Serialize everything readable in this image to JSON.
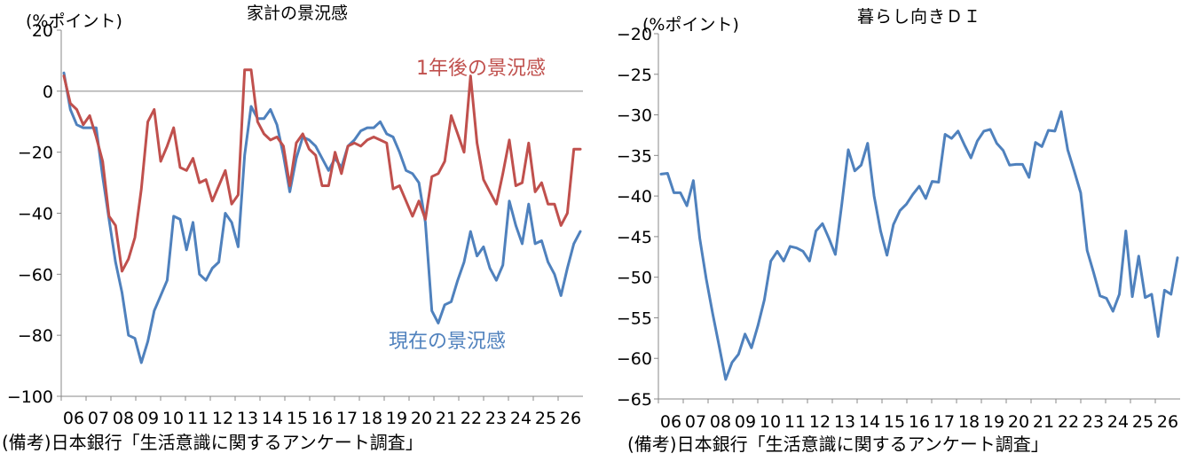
{
  "chart_data": [
    {
      "type": "line",
      "title": "家計の景況感",
      "ylabel": "(%ポイント)",
      "ylim": [
        -100,
        20
      ],
      "yticks": [
        20,
        0,
        -20,
        -40,
        -60,
        -80,
        -100
      ],
      "xlim": [
        2006,
        2026
      ],
      "x_tick_labels": [
        "06",
        "07",
        "08",
        "09",
        "10",
        "11",
        "12",
        "13",
        "14",
        "15",
        "16",
        "17",
        "18",
        "19",
        "20",
        "21",
        "22",
        "23",
        "24",
        "25",
        "26"
      ],
      "reference_line": 0,
      "grid": false,
      "source": "(備考)日本銀行「生活意識に関するアンケート調査」",
      "series": [
        {
          "name": "現在の景況感",
          "color": "#4f81bd",
          "points": [
            [
              2006.0,
              6
            ],
            [
              2006.25,
              -6
            ],
            [
              2006.5,
              -11
            ],
            [
              2006.75,
              -12
            ],
            [
              2007.0,
              -12
            ],
            [
              2007.25,
              -12
            ],
            [
              2007.5,
              -28
            ],
            [
              2007.75,
              -42
            ],
            [
              2008.0,
              -56
            ],
            [
              2008.25,
              -66
            ],
            [
              2008.5,
              -80
            ],
            [
              2008.75,
              -81
            ],
            [
              2009.0,
              -89
            ],
            [
              2009.25,
              -82
            ],
            [
              2009.5,
              -72
            ],
            [
              2009.75,
              -67
            ],
            [
              2010.0,
              -62
            ],
            [
              2010.25,
              -41
            ],
            [
              2010.5,
              -42
            ],
            [
              2010.75,
              -52
            ],
            [
              2011.0,
              -43
            ],
            [
              2011.25,
              -60
            ],
            [
              2011.5,
              -62
            ],
            [
              2011.75,
              -58
            ],
            [
              2012.0,
              -56
            ],
            [
              2012.25,
              -40
            ],
            [
              2012.5,
              -43
            ],
            [
              2012.75,
              -51
            ],
            [
              2013.0,
              -21
            ],
            [
              2013.25,
              -5
            ],
            [
              2013.5,
              -9
            ],
            [
              2013.75,
              -9
            ],
            [
              2014.0,
              -6
            ],
            [
              2014.25,
              -11
            ],
            [
              2014.5,
              -21
            ],
            [
              2014.75,
              -33
            ],
            [
              2015.0,
              -22
            ],
            [
              2015.25,
              -15
            ],
            [
              2015.5,
              -16
            ],
            [
              2015.75,
              -18
            ],
            [
              2016.0,
              -22
            ],
            [
              2016.25,
              -26
            ],
            [
              2016.5,
              -22
            ],
            [
              2016.75,
              -25
            ],
            [
              2017.0,
              -18
            ],
            [
              2017.25,
              -16
            ],
            [
              2017.5,
              -13
            ],
            [
              2017.75,
              -12
            ],
            [
              2018.0,
              -12
            ],
            [
              2018.25,
              -10
            ],
            [
              2018.5,
              -14
            ],
            [
              2018.75,
              -15
            ],
            [
              2019.0,
              -20
            ],
            [
              2019.25,
              -26
            ],
            [
              2019.5,
              -27
            ],
            [
              2019.75,
              -30
            ],
            [
              2020.0,
              -43
            ],
            [
              2020.25,
              -72
            ],
            [
              2020.5,
              -76
            ],
            [
              2020.75,
              -70
            ],
            [
              2021.0,
              -69
            ],
            [
              2021.25,
              -62
            ],
            [
              2021.5,
              -56
            ],
            [
              2021.75,
              -46
            ],
            [
              2022.0,
              -54
            ],
            [
              2022.25,
              -51
            ],
            [
              2022.5,
              -58
            ],
            [
              2022.75,
              -62
            ],
            [
              2023.0,
              -57
            ],
            [
              2023.25,
              -36
            ],
            [
              2023.5,
              -44
            ],
            [
              2023.75,
              -50
            ],
            [
              2024.0,
              -37
            ],
            [
              2024.25,
              -50
            ],
            [
              2024.5,
              -49
            ],
            [
              2024.75,
              -56
            ],
            [
              2025.0,
              -60
            ],
            [
              2025.25,
              -67
            ],
            [
              2025.5,
              -58
            ],
            [
              2025.75,
              -50
            ],
            [
              2026.0,
              -46
            ]
          ]
        },
        {
          "name": "1年後の景況感",
          "color": "#c0504d",
          "points": [
            [
              2006.0,
              5
            ],
            [
              2006.25,
              -4
            ],
            [
              2006.5,
              -6
            ],
            [
              2006.75,
              -11
            ],
            [
              2007.0,
              -8
            ],
            [
              2007.25,
              -15
            ],
            [
              2007.5,
              -23
            ],
            [
              2007.75,
              -41
            ],
            [
              2008.0,
              -44
            ],
            [
              2008.25,
              -59
            ],
            [
              2008.5,
              -55
            ],
            [
              2008.75,
              -48
            ],
            [
              2009.0,
              -32
            ],
            [
              2009.25,
              -10
            ],
            [
              2009.5,
              -6
            ],
            [
              2009.75,
              -23
            ],
            [
              2010.0,
              -18
            ],
            [
              2010.25,
              -12
            ],
            [
              2010.5,
              -25
            ],
            [
              2010.75,
              -26
            ],
            [
              2011.0,
              -22
            ],
            [
              2011.25,
              -30
            ],
            [
              2011.5,
              -29
            ],
            [
              2011.75,
              -36
            ],
            [
              2012.0,
              -31
            ],
            [
              2012.25,
              -26
            ],
            [
              2012.5,
              -37
            ],
            [
              2012.75,
              -34
            ],
            [
              2013.0,
              7
            ],
            [
              2013.25,
              7
            ],
            [
              2013.5,
              -10
            ],
            [
              2013.75,
              -14
            ],
            [
              2014.0,
              -16
            ],
            [
              2014.25,
              -15
            ],
            [
              2014.5,
              -18
            ],
            [
              2014.75,
              -31
            ],
            [
              2015.0,
              -17
            ],
            [
              2015.25,
              -14
            ],
            [
              2015.5,
              -19
            ],
            [
              2015.75,
              -21
            ],
            [
              2016.0,
              -31
            ],
            [
              2016.25,
              -31
            ],
            [
              2016.5,
              -20
            ],
            [
              2016.75,
              -27
            ],
            [
              2017.0,
              -18
            ],
            [
              2017.25,
              -17
            ],
            [
              2017.5,
              -18
            ],
            [
              2017.75,
              -16
            ],
            [
              2018.0,
              -15
            ],
            [
              2018.25,
              -16
            ],
            [
              2018.5,
              -17
            ],
            [
              2018.75,
              -32
            ],
            [
              2019.0,
              -31
            ],
            [
              2019.25,
              -36
            ],
            [
              2019.5,
              -41
            ],
            [
              2019.75,
              -36
            ],
            [
              2020.0,
              -42
            ],
            [
              2020.25,
              -28
            ],
            [
              2020.5,
              -27
            ],
            [
              2020.75,
              -23
            ],
            [
              2021.0,
              -8
            ],
            [
              2021.25,
              -14
            ],
            [
              2021.5,
              -20
            ],
            [
              2021.75,
              5
            ],
            [
              2022.0,
              -17
            ],
            [
              2022.25,
              -29
            ],
            [
              2022.5,
              -33
            ],
            [
              2022.75,
              -37
            ],
            [
              2023.0,
              -27
            ],
            [
              2023.25,
              -16
            ],
            [
              2023.5,
              -31
            ],
            [
              2023.75,
              -30
            ],
            [
              2024.0,
              -17
            ],
            [
              2024.25,
              -33
            ],
            [
              2024.5,
              -30
            ],
            [
              2024.75,
              -37
            ],
            [
              2025.0,
              -37
            ],
            [
              2025.25,
              -44
            ],
            [
              2025.5,
              -40
            ],
            [
              2025.75,
              -19
            ],
            [
              2026.0,
              -19
            ]
          ]
        }
      ],
      "annotations": [
        {
          "text": "1年後の景況感",
          "color": "#c0504d"
        },
        {
          "text": "現在の景況感",
          "color": "#4f81bd"
        }
      ]
    },
    {
      "type": "line",
      "title": "暮らし向きＤＩ",
      "ylabel": "(%ポイント)",
      "ylim": [
        -65,
        -20
      ],
      "yticks": [
        -20,
        -25,
        -30,
        -35,
        -40,
        -45,
        -50,
        -55,
        -60,
        -65
      ],
      "xlim": [
        2006,
        2026
      ],
      "x_tick_labels": [
        "06",
        "07",
        "08",
        "09",
        "10",
        "11",
        "12",
        "13",
        "14",
        "15",
        "16",
        "17",
        "18",
        "19",
        "20",
        "21",
        "22",
        "23",
        "24",
        "25",
        "26"
      ],
      "grid": false,
      "source": "(備考)日本銀行「生活意識に関するアンケート調査」",
      "series": [
        {
          "color": "#4f81bd",
          "points": [
            [
              2006.0,
              -37.3
            ],
            [
              2006.25,
              -37.2
            ],
            [
              2006.5,
              -39.6
            ],
            [
              2006.75,
              -39.6
            ],
            [
              2007.0,
              -41.2
            ],
            [
              2007.25,
              -38.1
            ],
            [
              2007.5,
              -45.2
            ],
            [
              2007.75,
              -50.2
            ],
            [
              2008.0,
              -54.5
            ],
            [
              2008.25,
              -58.5
            ],
            [
              2008.5,
              -62.6
            ],
            [
              2008.75,
              -60.5
            ],
            [
              2009.0,
              -59.5
            ],
            [
              2009.25,
              -57.0
            ],
            [
              2009.5,
              -58.7
            ],
            [
              2009.75,
              -56.0
            ],
            [
              2010.0,
              -52.8
            ],
            [
              2010.25,
              -48.0
            ],
            [
              2010.5,
              -46.8
            ],
            [
              2010.75,
              -48.0
            ],
            [
              2011.0,
              -46.2
            ],
            [
              2011.25,
              -46.4
            ],
            [
              2011.5,
              -46.8
            ],
            [
              2011.75,
              -48.0
            ],
            [
              2012.0,
              -44.3
            ],
            [
              2012.25,
              -43.4
            ],
            [
              2012.5,
              -45.2
            ],
            [
              2012.75,
              -47.2
            ],
            [
              2013.0,
              -41.0
            ],
            [
              2013.25,
              -34.3
            ],
            [
              2013.5,
              -36.9
            ],
            [
              2013.75,
              -36.2
            ],
            [
              2014.0,
              -33.5
            ],
            [
              2014.25,
              -40.0
            ],
            [
              2014.5,
              -44.3
            ],
            [
              2014.75,
              -47.3
            ],
            [
              2015.0,
              -43.5
            ],
            [
              2015.25,
              -41.8
            ],
            [
              2015.5,
              -41.0
            ],
            [
              2015.75,
              -39.8
            ],
            [
              2016.0,
              -38.8
            ],
            [
              2016.25,
              -40.3
            ],
            [
              2016.5,
              -38.2
            ],
            [
              2016.75,
              -38.3
            ],
            [
              2017.0,
              -32.4
            ],
            [
              2017.25,
              -32.9
            ],
            [
              2017.5,
              -32.0
            ],
            [
              2017.75,
              -33.7
            ],
            [
              2018.0,
              -35.3
            ],
            [
              2018.25,
              -33.2
            ],
            [
              2018.5,
              -32.0
            ],
            [
              2018.75,
              -31.8
            ],
            [
              2019.0,
              -33.5
            ],
            [
              2019.25,
              -34.4
            ],
            [
              2019.5,
              -36.2
            ],
            [
              2019.75,
              -36.1
            ],
            [
              2020.0,
              -36.1
            ],
            [
              2020.25,
              -37.7
            ],
            [
              2020.5,
              -33.4
            ],
            [
              2020.75,
              -33.9
            ],
            [
              2021.0,
              -31.9
            ],
            [
              2021.25,
              -32.0
            ],
            [
              2021.5,
              -29.6
            ],
            [
              2021.75,
              -34.3
            ],
            [
              2022.0,
              -36.9
            ],
            [
              2022.25,
              -39.6
            ],
            [
              2022.5,
              -46.7
            ],
            [
              2022.75,
              -49.4
            ],
            [
              2023.0,
              -52.3
            ],
            [
              2023.25,
              -52.6
            ],
            [
              2023.5,
              -54.2
            ],
            [
              2023.75,
              -52.1
            ],
            [
              2024.0,
              -44.3
            ],
            [
              2024.25,
              -52.4
            ],
            [
              2024.5,
              -47.4
            ],
            [
              2024.75,
              -52.5
            ],
            [
              2025.0,
              -52.1
            ],
            [
              2025.25,
              -57.3
            ],
            [
              2025.5,
              -51.6
            ],
            [
              2025.75,
              -52.1
            ],
            [
              2026.0,
              -47.6
            ]
          ]
        }
      ]
    }
  ]
}
